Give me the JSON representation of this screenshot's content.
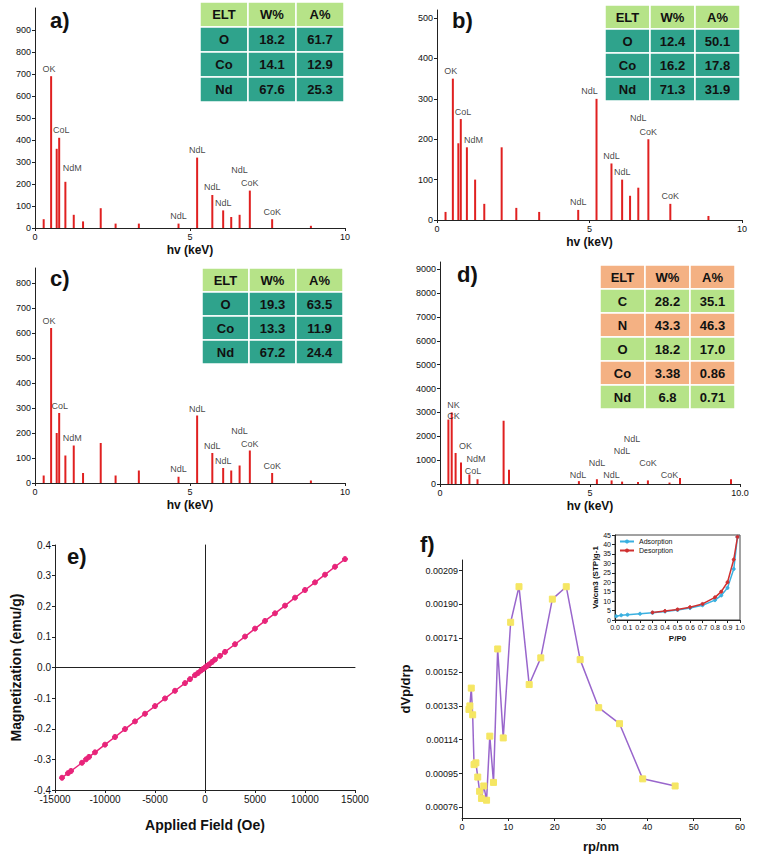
{
  "chart_data": [
    {
      "type": "bar",
      "title": "a)",
      "x_label": "hv (keV)",
      "color": "#e02020",
      "x": [
        0.28,
        0.52,
        0.7,
        0.78,
        0.98,
        1.25,
        1.55,
        2.12,
        2.6,
        3.35,
        4.63,
        5.23,
        5.72,
        6.07,
        6.33,
        6.6,
        6.93,
        7.65,
        8.9
      ],
      "values": [
        40,
        690,
        360,
        410,
        210,
        60,
        30,
        90,
        20,
        20,
        20,
        320,
        150,
        80,
        50,
        60,
        170,
        40,
        10
      ],
      "xlim": [
        0,
        10
      ],
      "ylim": [
        0,
        1000
      ],
      "xticks": [
        0,
        5,
        10
      ],
      "yticks": [
        0,
        100,
        200,
        300,
        400,
        500,
        600,
        700,
        800,
        900
      ],
      "annotations": [
        {
          "text": "OK",
          "x": 0.45,
          "y": 700
        },
        {
          "text": "CoL",
          "x": 0.85,
          "y": 420
        },
        {
          "text": "NdM",
          "x": 1.2,
          "y": 250
        },
        {
          "text": "NdL",
          "x": 4.63,
          "y": 30
        },
        {
          "text": "NdL",
          "x": 5.23,
          "y": 330
        },
        {
          "text": "NdL",
          "x": 5.72,
          "y": 160
        },
        {
          "text": "NdL",
          "x": 6.07,
          "y": 90
        },
        {
          "text": "NdL",
          "x": 6.6,
          "y": 240
        },
        {
          "text": "CoK",
          "x": 6.93,
          "y": 180
        },
        {
          "text": "CoK",
          "x": 7.65,
          "y": 50
        }
      ],
      "table": {
        "header": [
          "ELT",
          "W%",
          "A%"
        ],
        "rows": [
          [
            "O",
            "18.2",
            "61.7"
          ],
          [
            "Co",
            "14.1",
            "12.9"
          ],
          [
            "Nd",
            "67.6",
            "25.3"
          ]
        ],
        "colors": [
          "#b6e388",
          "#2fa38c",
          "#2fa38c",
          "#2fa38c"
        ]
      }
    },
    {
      "type": "bar",
      "title": "b)",
      "x_label": "hv (keV)",
      "color": "#e02020",
      "x": [
        0.28,
        0.52,
        0.7,
        0.78,
        0.98,
        1.25,
        1.55,
        2.12,
        2.6,
        3.35,
        4.63,
        5.23,
        5.72,
        6.07,
        6.33,
        6.6,
        6.93,
        7.65,
        8.9
      ],
      "values": [
        20,
        350,
        190,
        250,
        180,
        100,
        40,
        180,
        30,
        20,
        25,
        300,
        140,
        100,
        60,
        80,
        200,
        40,
        10
      ],
      "xlim": [
        0,
        10
      ],
      "ylim": [
        0,
        520
      ],
      "xticks": [
        0,
        5,
        10
      ],
      "yticks": [
        0,
        100,
        200,
        300,
        400,
        500
      ],
      "annotations": [
        {
          "text": "OK",
          "x": 0.45,
          "y": 355
        },
        {
          "text": "CoL",
          "x": 0.85,
          "y": 255
        },
        {
          "text": "NdM",
          "x": 1.2,
          "y": 185
        },
        {
          "text": "NdL",
          "x": 4.63,
          "y": 30
        },
        {
          "text": "NdL",
          "x": 5.0,
          "y": 305
        },
        {
          "text": "NdL",
          "x": 5.72,
          "y": 145
        },
        {
          "text": "NdL",
          "x": 6.07,
          "y": 105
        },
        {
          "text": "NdL",
          "x": 6.6,
          "y": 240
        },
        {
          "text": "CoK",
          "x": 6.93,
          "y": 205
        },
        {
          "text": "CoK",
          "x": 7.65,
          "y": 45
        }
      ],
      "table": {
        "header": [
          "ELT",
          "W%",
          "A%"
        ],
        "rows": [
          [
            "O",
            "12.4",
            "50.1"
          ],
          [
            "Co",
            "16.2",
            "17.8"
          ],
          [
            "Nd",
            "71.3",
            "31.9"
          ]
        ],
        "colors": [
          "#b6e388",
          "#2fa38c",
          "#2fa38c",
          "#2fa38c"
        ]
      }
    },
    {
      "type": "bar",
      "title": "c)",
      "x_label": "hv (keV)",
      "color": "#e02020",
      "x": [
        0.28,
        0.52,
        0.7,
        0.78,
        0.98,
        1.25,
        1.55,
        2.12,
        2.6,
        3.35,
        4.63,
        5.23,
        5.72,
        6.07,
        6.33,
        6.6,
        6.93,
        7.65,
        8.9
      ],
      "values": [
        30,
        620,
        200,
        280,
        110,
        150,
        40,
        160,
        30,
        50,
        25,
        270,
        120,
        60,
        50,
        70,
        130,
        40,
        10
      ],
      "xlim": [
        0,
        10
      ],
      "ylim": [
        0,
        860
      ],
      "xticks": [
        0,
        5,
        10
      ],
      "yticks": [
        0,
        100,
        200,
        300,
        400,
        500,
        600,
        700,
        800
      ],
      "annotations": [
        {
          "text": "OK",
          "x": 0.45,
          "y": 625
        },
        {
          "text": "CoL",
          "x": 0.8,
          "y": 285
        },
        {
          "text": "NdM",
          "x": 1.2,
          "y": 160
        },
        {
          "text": "NdL",
          "x": 4.63,
          "y": 35
        },
        {
          "text": "NdL",
          "x": 5.23,
          "y": 275
        },
        {
          "text": "NdL",
          "x": 5.72,
          "y": 125
        },
        {
          "text": "NdL",
          "x": 6.07,
          "y": 65
        },
        {
          "text": "NdL",
          "x": 6.6,
          "y": 185
        },
        {
          "text": "CoK",
          "x": 6.93,
          "y": 135
        },
        {
          "text": "CoK",
          "x": 7.65,
          "y": 45
        }
      ],
      "table": {
        "header": [
          "ELT",
          "W%",
          "A%"
        ],
        "rows": [
          [
            "O",
            "19.3",
            "63.5"
          ],
          [
            "Co",
            "13.3",
            "11.9"
          ],
          [
            "Nd",
            "67.2",
            "24.4"
          ]
        ],
        "colors": [
          "#b6e388",
          "#2fa38c",
          "#2fa38c",
          "#2fa38c"
        ]
      }
    },
    {
      "type": "bar",
      "title": "d)",
      "x_label": "hv (keV)",
      "color": "#e02020",
      "x": [
        0.28,
        0.39,
        0.52,
        0.7,
        0.98,
        1.25,
        2.12,
        2.3,
        4.63,
        5.23,
        5.72,
        6.07,
        6.6,
        6.93,
        7.65,
        8.0,
        9.7
      ],
      "values": [
        2700,
        3000,
        1300,
        900,
        400,
        200,
        2650,
        600,
        120,
        200,
        150,
        100,
        80,
        150,
        60,
        250,
        200
      ],
      "xlim": [
        0,
        10
      ],
      "ylim": [
        0,
        9300
      ],
      "xticks": [
        0,
        5,
        {
          "value": 10,
          "label": "10.0"
        }
      ],
      "yticks": [
        0,
        1000,
        2000,
        3000,
        4000,
        5000,
        6000,
        7000,
        8000,
        9000
      ],
      "annotations": [
        {
          "text": "NK",
          "x": 0.45,
          "y": 3100
        },
        {
          "text": "CK",
          "x": 0.45,
          "y": 2600
        },
        {
          "text": "OK",
          "x": 0.85,
          "y": 1350
        },
        {
          "text": "NdM",
          "x": 1.2,
          "y": 800
        },
        {
          "text": "CoL",
          "x": 1.1,
          "y": 300
        },
        {
          "text": "NdL",
          "x": 4.6,
          "y": 150
        },
        {
          "text": "NdL",
          "x": 5.23,
          "y": 650
        },
        {
          "text": "NdL",
          "x": 5.72,
          "y": 150
        },
        {
          "text": "NdL",
          "x": 6.07,
          "y": 1150
        },
        {
          "text": "NdL",
          "x": 6.4,
          "y": 1650
        },
        {
          "text": "CoK",
          "x": 6.93,
          "y": 650
        },
        {
          "text": "CoK",
          "x": 7.65,
          "y": 150
        }
      ],
      "table": {
        "header": [
          "ELT",
          "W%",
          "A%"
        ],
        "rows": [
          [
            "C",
            "28.2",
            "35.1"
          ],
          [
            "N",
            "43.3",
            "46.3"
          ],
          [
            "O",
            "18.2",
            "17.0"
          ],
          [
            "Co",
            "3.38",
            "0.86"
          ],
          [
            "Nd",
            "6.8",
            "0.71"
          ]
        ],
        "colors": [
          "#f4b183",
          "#b6e388",
          "#f4b183",
          "#b6e388",
          "#f4b183",
          "#b6e388"
        ]
      }
    },
    {
      "type": "line",
      "title": "e)",
      "x_label": "Applied Field (Oe)",
      "y_label": "Magnetization (emu/g)",
      "color": "#e8247a",
      "marker": "circle",
      "x": [
        -14300,
        -13700,
        -13400,
        -12300,
        -11900,
        -11600,
        -11000,
        -10000,
        -9000,
        -8000,
        -7000,
        -6000,
        -5000,
        -4000,
        -3000,
        -2000,
        -1500,
        -1000,
        -700,
        -400,
        -200,
        0,
        200,
        400,
        700,
        1000,
        1500,
        2000,
        3000,
        4000,
        5000,
        6000,
        7000,
        8000,
        9000,
        10000,
        11000,
        12000,
        13000,
        14000
      ],
      "values": [
        -0.36,
        -0.345,
        -0.338,
        -0.311,
        -0.3,
        -0.292,
        -0.277,
        -0.252,
        -0.227,
        -0.201,
        -0.176,
        -0.151,
        -0.126,
        -0.101,
        -0.076,
        -0.051,
        -0.038,
        -0.025,
        -0.018,
        -0.01,
        -0.005,
        0.0,
        0.005,
        0.01,
        0.018,
        0.026,
        0.038,
        0.051,
        0.076,
        0.101,
        0.127,
        0.152,
        0.177,
        0.202,
        0.228,
        0.253,
        0.278,
        0.303,
        0.329,
        0.354
      ],
      "xlim": [
        -15000,
        15000
      ],
      "ylim": [
        -0.4,
        0.4
      ],
      "xticks": [
        -15000,
        -10000,
        -5000,
        0,
        5000,
        10000,
        15000
      ],
      "yticks": [
        -0.4,
        -0.3,
        -0.2,
        -0.1,
        {
          "value": 0,
          "label": "0.0"
        },
        0.1,
        0.2,
        0.3,
        0.4
      ]
    },
    {
      "type": "line",
      "title": "f)",
      "x_label": "rp/nm",
      "y_label": "dVp/drp",
      "color": "#9966cc",
      "marker": "square",
      "x": [
        1.5,
        1.7,
        2.0,
        2.3,
        2.6,
        3.0,
        3.4,
        3.8,
        4.2,
        4.7,
        5.3,
        6.0,
        6.8,
        7.7,
        8.9,
        10.5,
        12.3,
        14.5,
        17.0,
        19.5,
        22.5,
        25.5,
        29.5,
        34.0,
        39.0,
        46.0
      ],
      "values": [
        0.00131,
        0.00133,
        0.00143,
        0.00128,
        0.001,
        0.00101,
        0.00093,
        0.00085,
        0.00081,
        0.00088,
        0.0008,
        0.00116,
        0.0009,
        0.00165,
        0.00115,
        0.0018,
        0.002,
        0.00145,
        0.0016,
        0.00193,
        0.002,
        0.00159,
        0.00132,
        0.00123,
        0.00092,
        0.00088
      ],
      "xlim": [
        0,
        60
      ],
      "ylim": [
        0.0007,
        0.00215
      ],
      "xticks": [
        0,
        10,
        20,
        30,
        40,
        50,
        60
      ],
      "yticks": [
        0.00076,
        0.00095,
        0.00114,
        0.00133,
        0.00152,
        0.00171,
        {
          "value": 0.0019,
          "label": "0.00190"
        },
        0.00209
      ]
    },
    {
      "type": "line",
      "x_label": "P/P0",
      "y_label": "Va/cm3 (STP)g-1",
      "legend": "upper left",
      "series": [
        {
          "name": "Adsorption",
          "color": "#3ab0e0",
          "marker": "circle",
          "x": [
            0.01,
            0.05,
            0.1,
            0.2,
            0.3,
            0.4,
            0.5,
            0.6,
            0.7,
            0.8,
            0.85,
            0.9,
            0.95,
            0.98
          ],
          "values": [
            2,
            2.5,
            2.8,
            3.3,
            3.8,
            4.5,
            5.3,
            6.3,
            7.8,
            10.5,
            13,
            17,
            27,
            44
          ]
        },
        {
          "name": "Desorption",
          "color": "#d03030",
          "marker": "circle",
          "x": [
            0.98,
            0.95,
            0.9,
            0.85,
            0.8,
            0.7,
            0.6,
            0.5,
            0.4,
            0.3
          ],
          "values": [
            44,
            32,
            20,
            15,
            12,
            8.5,
            6.8,
            5.6,
            4.8,
            4.0
          ]
        }
      ],
      "xlim": [
        0,
        1
      ],
      "ylim": [
        0,
        45
      ],
      "xticks": [
        {
          "value": 0,
          "label": "0.0"
        },
        0.1,
        0.2,
        0.3,
        0.4,
        0.5,
        0.6,
        0.7,
        0.8,
        0.9,
        {
          "value": 1,
          "label": "1.0"
        }
      ],
      "yticks": [
        0,
        5,
        10,
        15,
        20,
        25,
        30,
        35,
        40,
        45
      ]
    }
  ]
}
